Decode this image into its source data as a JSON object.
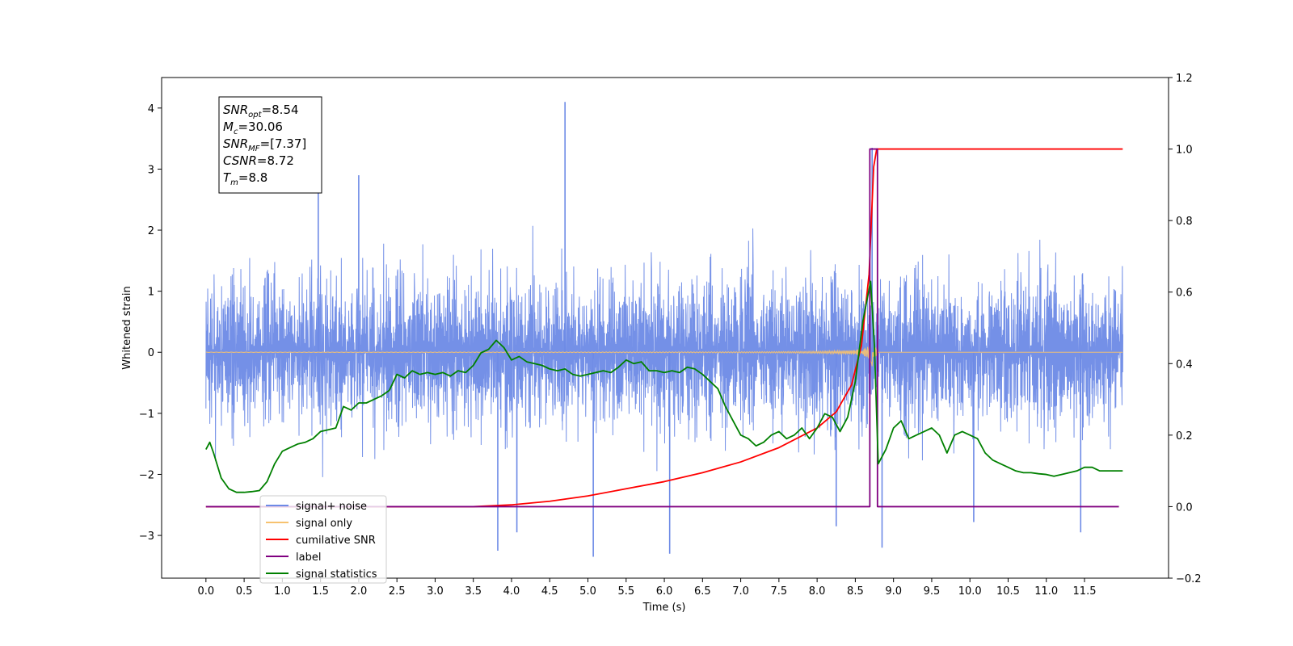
{
  "chart_data": {
    "type": "line",
    "xlabel": "Time (s)",
    "ylabel": "Whitened strain",
    "xlim": [
      -0.58,
      12.6
    ],
    "ylim": [
      -3.7,
      4.5
    ],
    "y2lim": [
      -0.2,
      1.2
    ],
    "x_ticks": [
      "0.0",
      "0.5",
      "1.0",
      "1.5",
      "2.0",
      "2.5",
      "3.0",
      "3.5",
      "4.0",
      "4.5",
      "5.0",
      "5.5",
      "6.0",
      "6.5",
      "7.0",
      "7.5",
      "8.0",
      "8.5",
      "9.0",
      "9.5",
      "10.0",
      "10.5",
      "11.0",
      "11.5"
    ],
    "y_ticks": [
      "4",
      "3",
      "2",
      "1",
      "0",
      "−1",
      "−2",
      "−3"
    ],
    "y2_ticks": [
      "1.2",
      "1.0",
      "0.8",
      "0.6",
      "0.4",
      "0.2",
      "0.0",
      "−0.2"
    ],
    "legend_position": "lower-left",
    "annotation": {
      "lines": [
        {
          "base": "SNR",
          "sub": "opt",
          "value": "=8.54"
        },
        {
          "base": "M",
          "sub": "c",
          "value": "=30.06"
        },
        {
          "base": "SNR",
          "sub": "MF",
          "value": "=[7.37]"
        },
        {
          "base": "CSNR",
          "sub": "",
          "value": "=8.72"
        },
        {
          "base": "T",
          "sub": "m",
          "value": "=8.8"
        }
      ]
    },
    "series": [
      {
        "name": "signal+ noise",
        "axis": "left",
        "color": "#6d8ae6",
        "x_range": [
          0.0,
          12.0
        ],
        "envelope": "noise roughly within [-2.2, 2.2] with spikes",
        "spikes": [
          {
            "x": 4.7,
            "y": 4.1
          },
          {
            "x": 8.72,
            "y": 3.35
          },
          {
            "x": 1.47,
            "y": 3.0
          },
          {
            "x": 2.0,
            "y": 2.9
          },
          {
            "x": 5.07,
            "y": -3.35
          },
          {
            "x": 6.07,
            "y": -3.3
          },
          {
            "x": 3.82,
            "y": -3.25
          },
          {
            "x": 8.85,
            "y": -3.2
          },
          {
            "x": 11.45,
            "y": -2.95
          },
          {
            "x": 4.07,
            "y": -2.95
          },
          {
            "x": 8.25,
            "y": -2.85
          },
          {
            "x": 10.05,
            "y": -2.78
          }
        ]
      },
      {
        "name": "signal only",
        "axis": "left",
        "color": "#f7c26f",
        "x_range": [
          0.0,
          12.0
        ],
        "chirp_merger_x": 8.74,
        "peak_amplitude": 0.55
      },
      {
        "name": "cumilative SNR",
        "axis": "right",
        "color": "#ff0000",
        "x": [
          0.0,
          3.5,
          4.0,
          4.5,
          5.0,
          5.5,
          6.0,
          6.5,
          7.0,
          7.5,
          8.0,
          8.25,
          8.45,
          8.58,
          8.68,
          8.74,
          8.78,
          8.78,
          12.0
        ],
        "y": [
          0.0,
          0.0,
          0.005,
          0.015,
          0.03,
          0.05,
          0.07,
          0.095,
          0.125,
          0.165,
          0.22,
          0.265,
          0.34,
          0.45,
          0.65,
          0.95,
          1.0,
          1.0,
          1.0
        ]
      },
      {
        "name": "label",
        "axis": "right",
        "color": "#800080",
        "x": [
          0.0,
          8.69,
          8.69,
          8.79,
          8.79,
          11.95
        ],
        "y": [
          0.0,
          0.0,
          1.0,
          1.0,
          0.0,
          0.0
        ]
      },
      {
        "name": "signal statistics",
        "axis": "right",
        "color": "#008000",
        "x": [
          0.0,
          0.05,
          0.1,
          0.2,
          0.3,
          0.4,
          0.5,
          0.6,
          0.7,
          0.8,
          0.9,
          1.0,
          1.1,
          1.2,
          1.3,
          1.4,
          1.5,
          1.6,
          1.7,
          1.75,
          1.8,
          1.9,
          2.0,
          2.1,
          2.2,
          2.3,
          2.4,
          2.5,
          2.6,
          2.7,
          2.8,
          2.9,
          3.0,
          3.1,
          3.2,
          3.3,
          3.4,
          3.5,
          3.6,
          3.7,
          3.8,
          3.9,
          4.0,
          4.1,
          4.2,
          4.3,
          4.4,
          4.5,
          4.6,
          4.7,
          4.8,
          4.9,
          5.0,
          5.1,
          5.2,
          5.3,
          5.4,
          5.5,
          5.6,
          5.7,
          5.8,
          5.9,
          6.0,
          6.1,
          6.2,
          6.3,
          6.4,
          6.5,
          6.6,
          6.7,
          6.8,
          6.9,
          7.0,
          7.1,
          7.2,
          7.3,
          7.4,
          7.5,
          7.6,
          7.7,
          7.8,
          7.9,
          8.0,
          8.1,
          8.2,
          8.3,
          8.4,
          8.5,
          8.6,
          8.7,
          8.75,
          8.8,
          8.9,
          9.0,
          9.1,
          9.2,
          9.3,
          9.4,
          9.5,
          9.6,
          9.7,
          9.8,
          9.9,
          10.0,
          10.1,
          10.2,
          10.3,
          10.4,
          10.5,
          10.6,
          10.7,
          10.8,
          10.9,
          11.0,
          11.1,
          11.2,
          11.3,
          11.4,
          11.5,
          11.6,
          11.7,
          11.8,
          11.9,
          12.0
        ],
        "y": [
          0.16,
          0.18,
          0.15,
          0.08,
          0.05,
          0.04,
          0.04,
          0.042,
          0.045,
          0.07,
          0.12,
          0.155,
          0.165,
          0.175,
          0.18,
          0.19,
          0.21,
          0.215,
          0.22,
          0.25,
          0.28,
          0.27,
          0.29,
          0.29,
          0.3,
          0.31,
          0.325,
          0.37,
          0.36,
          0.38,
          0.37,
          0.375,
          0.37,
          0.375,
          0.365,
          0.38,
          0.375,
          0.395,
          0.43,
          0.44,
          0.465,
          0.445,
          0.41,
          0.42,
          0.405,
          0.4,
          0.395,
          0.385,
          0.38,
          0.385,
          0.37,
          0.365,
          0.37,
          0.375,
          0.38,
          0.375,
          0.39,
          0.41,
          0.4,
          0.405,
          0.38,
          0.38,
          0.375,
          0.38,
          0.375,
          0.39,
          0.385,
          0.37,
          0.35,
          0.33,
          0.28,
          0.24,
          0.2,
          0.19,
          0.17,
          0.18,
          0.2,
          0.21,
          0.19,
          0.2,
          0.22,
          0.19,
          0.22,
          0.26,
          0.25,
          0.21,
          0.25,
          0.35,
          0.52,
          0.63,
          0.45,
          0.12,
          0.16,
          0.22,
          0.24,
          0.19,
          0.2,
          0.21,
          0.22,
          0.2,
          0.15,
          0.2,
          0.21,
          0.2,
          0.19,
          0.15,
          0.13,
          0.12,
          0.11,
          0.1,
          0.095,
          0.095,
          0.092,
          0.09,
          0.085,
          0.09,
          0.095,
          0.1,
          0.11,
          0.11,
          0.1,
          0.1,
          0.1,
          0.1
        ]
      }
    ]
  }
}
